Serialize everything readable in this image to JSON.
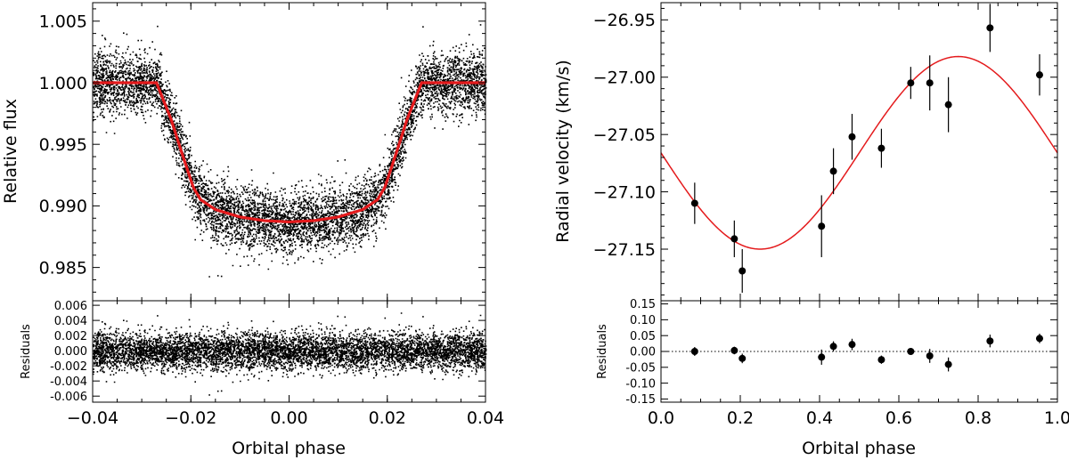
{
  "chart_data": [
    {
      "type": "scatter",
      "panel": "transit-light-curve",
      "xlabel": "Orbital phase",
      "ylabel": "Relative flux",
      "xlim": [
        -0.04,
        0.04
      ],
      "ylim": [
        0.9823,
        1.0065
      ],
      "xticks": [
        -0.04,
        -0.02,
        0.0,
        0.02,
        0.04
      ],
      "xtick_labels": [
        "−0.04",
        "−0.02",
        "0.00",
        "0.02",
        "0.04"
      ],
      "yticks": [
        0.985,
        0.99,
        0.995,
        1.0,
        1.005
      ],
      "ytick_labels": [
        "0.985",
        "0.990",
        "0.995",
        "1.000",
        "1.005"
      ],
      "model": {
        "color": "#e41a1c",
        "x": [
          -0.04,
          -0.027,
          -0.024,
          -0.022,
          -0.0195,
          -0.018,
          -0.015,
          -0.01,
          -0.005,
          0.0,
          0.005,
          0.01,
          0.015,
          0.018,
          0.0195,
          0.022,
          0.024,
          0.027,
          0.04
        ],
        "y": [
          1.0,
          1.0,
          0.997,
          0.9945,
          0.9915,
          0.9905,
          0.9897,
          0.9891,
          0.9888,
          0.9887,
          0.9888,
          0.9891,
          0.9897,
          0.9905,
          0.9915,
          0.9945,
          0.997,
          1.0,
          1.0
        ]
      },
      "scatter_sigma": 0.0012,
      "residuals": {
        "ylabel": "Residuals",
        "ylim": [
          -0.0068,
          0.0066
        ],
        "yticks": [
          -0.006,
          -0.004,
          -0.002,
          0.0,
          0.002,
          0.004,
          0.006
        ],
        "ytick_labels": [
          "-0.006",
          "-0.004",
          "-0.002",
          "0.000",
          "0.002",
          "0.004",
          "0.006"
        ]
      }
    },
    {
      "type": "scatter",
      "panel": "radial-velocity",
      "xlabel": "Orbital phase",
      "ylabel": "Radial velocity (km/s)",
      "xlim": [
        0.0,
        1.0
      ],
      "ylim": [
        -27.195,
        -26.935
      ],
      "xticks": [
        0.0,
        0.2,
        0.4,
        0.6,
        0.8,
        1.0
      ],
      "xtick_labels": [
        "0.0",
        "0.2",
        "0.4",
        "0.6",
        "0.8",
        "1.0"
      ],
      "yticks": [
        -27.15,
        -27.1,
        -27.05,
        -27.0,
        -26.95
      ],
      "ytick_labels": [
        "−27.15",
        "−27.10",
        "−27.05",
        "−27.00",
        "−26.95"
      ],
      "model": {
        "color": "#e41a1c",
        "gamma": -27.066,
        "K": 0.084,
        "phase_min": 0.25
      },
      "points": [
        {
          "x": 0.085,
          "y": -27.11,
          "err": 0.018
        },
        {
          "x": 0.185,
          "y": -27.141,
          "err": 0.016
        },
        {
          "x": 0.205,
          "y": -27.169,
          "err": 0.019
        },
        {
          "x": 0.405,
          "y": -27.13,
          "err": 0.027
        },
        {
          "x": 0.435,
          "y": -27.082,
          "err": 0.02
        },
        {
          "x": 0.482,
          "y": -27.052,
          "err": 0.02
        },
        {
          "x": 0.556,
          "y": -27.062,
          "err": 0.017
        },
        {
          "x": 0.63,
          "y": -27.005,
          "err": 0.014
        },
        {
          "x": 0.678,
          "y": -27.005,
          "err": 0.024
        },
        {
          "x": 0.725,
          "y": -27.024,
          "err": 0.024
        },
        {
          "x": 0.83,
          "y": -26.957,
          "err": 0.021
        },
        {
          "x": 0.955,
          "y": -26.998,
          "err": 0.018
        }
      ],
      "residuals": {
        "ylabel": "Residuals",
        "ylim": [
          -0.16,
          0.16
        ],
        "yticks": [
          -0.15,
          -0.1,
          -0.05,
          0.0,
          0.05,
          0.1,
          0.15
        ],
        "ytick_labels": [
          "-0.15",
          "-0.10",
          "-0.05",
          "0.00",
          "0.05",
          "0.10",
          "0.15"
        ],
        "points": [
          {
            "x": 0.085,
            "y": 0.0,
            "err": 0.014
          },
          {
            "x": 0.185,
            "y": 0.003,
            "err": 0.012
          },
          {
            "x": 0.205,
            "y": -0.022,
            "err": 0.015
          },
          {
            "x": 0.405,
            "y": -0.018,
            "err": 0.024
          },
          {
            "x": 0.435,
            "y": 0.016,
            "err": 0.016
          },
          {
            "x": 0.482,
            "y": 0.022,
            "err": 0.018
          },
          {
            "x": 0.556,
            "y": -0.026,
            "err": 0.013
          },
          {
            "x": 0.63,
            "y": 0.0,
            "err": 0.01
          },
          {
            "x": 0.678,
            "y": -0.014,
            "err": 0.022
          },
          {
            "x": 0.725,
            "y": -0.041,
            "err": 0.022
          },
          {
            "x": 0.83,
            "y": 0.033,
            "err": 0.02
          },
          {
            "x": 0.955,
            "y": 0.041,
            "err": 0.015
          }
        ]
      }
    }
  ]
}
